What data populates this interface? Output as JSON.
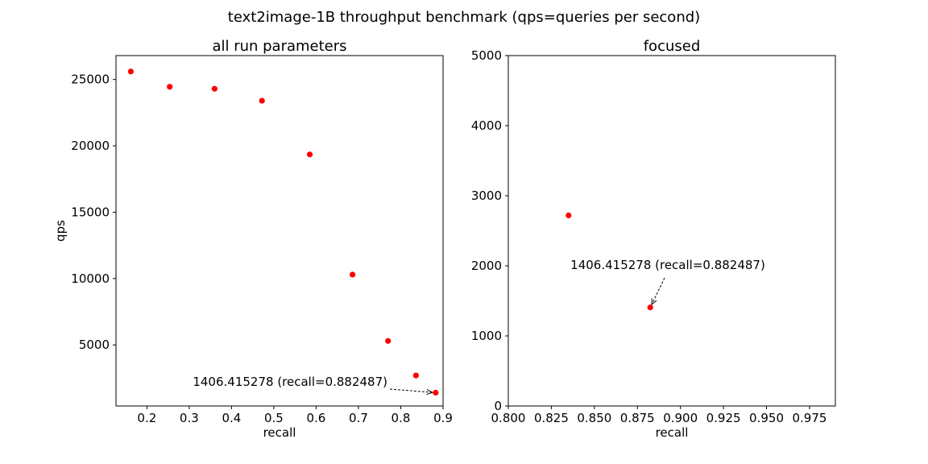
{
  "figure_title": "text2image-1B throughput benchmark (qps=queries per second)",
  "colors": {
    "point": "#ff0000",
    "axis": "#000000",
    "background": "#ffffff"
  },
  "chart_data": [
    {
      "type": "scatter",
      "title": "all run parameters",
      "xlabel": "recall",
      "ylabel": "qps",
      "xlim": [
        0.127,
        0.9
      ],
      "ylim": [
        400,
        26800
      ],
      "xticks": [
        0.2,
        0.3,
        0.4,
        0.5,
        0.6,
        0.7,
        0.8,
        0.9
      ],
      "xtick_labels": [
        "0.2",
        "0.3",
        "0.4",
        "0.5",
        "0.6",
        "0.7",
        "0.8",
        "0.9"
      ],
      "yticks": [
        5000,
        10000,
        15000,
        20000,
        25000
      ],
      "ytick_labels": [
        "5000",
        "10000",
        "15000",
        "20000",
        "25000"
      ],
      "grid": false,
      "points": [
        {
          "x": 0.162,
          "y": 25600
        },
        {
          "x": 0.254,
          "y": 24450
        },
        {
          "x": 0.36,
          "y": 24300
        },
        {
          "x": 0.472,
          "y": 23400
        },
        {
          "x": 0.585,
          "y": 19350
        },
        {
          "x": 0.686,
          "y": 10300
        },
        {
          "x": 0.77,
          "y": 5300
        },
        {
          "x": 0.836,
          "y": 2700
        },
        {
          "x": 0.882487,
          "y": 1406.415278
        }
      ],
      "annotation": {
        "text": "1406.415278 (recall=0.882487)",
        "x": 0.882487,
        "y": 1406.415278
      }
    },
    {
      "type": "scatter",
      "title": "focused",
      "xlabel": "recall",
      "ylabel": "",
      "xlim": [
        0.8,
        0.99
      ],
      "ylim": [
        0,
        5000
      ],
      "xticks": [
        0.8,
        0.825,
        0.85,
        0.875,
        0.9,
        0.925,
        0.95,
        0.975
      ],
      "xtick_labels": [
        "0.800",
        "0.825",
        "0.850",
        "0.875",
        "0.900",
        "0.925",
        "0.950",
        "0.975"
      ],
      "yticks": [
        0,
        1000,
        2000,
        3000,
        4000,
        5000
      ],
      "ytick_labels": [
        "0",
        "1000",
        "2000",
        "3000",
        "4000",
        "5000"
      ],
      "grid": false,
      "points": [
        {
          "x": 0.835,
          "y": 2720
        },
        {
          "x": 0.882487,
          "y": 1406.415278
        }
      ],
      "annotation": {
        "text": "1406.415278 (recall=0.882487)",
        "x": 0.882487,
        "y": 1406.415278
      }
    }
  ]
}
